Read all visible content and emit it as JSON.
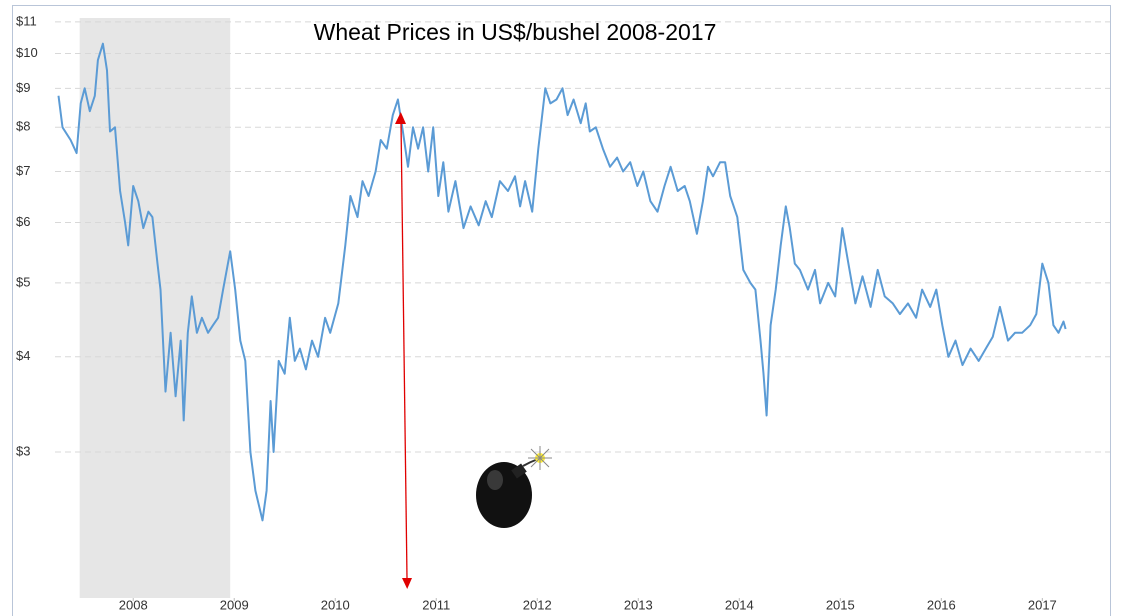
{
  "chart_data": {
    "type": "line",
    "title": "Wheat Prices in US$/bushel 2008-2017",
    "log_scale": true,
    "grid": true,
    "recession_band": [
      2007.97,
      2009.46
    ],
    "xlim": [
      2007.3,
      2018.17
    ],
    "ylim": [
      1.93,
      11.13
    ],
    "xticks": [
      {
        "value": 2008.5,
        "label": "2008"
      },
      {
        "value": 2009.5,
        "label": "2009"
      },
      {
        "value": 2010.5,
        "label": "2010"
      },
      {
        "value": 2011.5,
        "label": "2011"
      },
      {
        "value": 2012.5,
        "label": "2012"
      },
      {
        "value": 2013.5,
        "label": "2013"
      },
      {
        "value": 2014.5,
        "label": "2014"
      },
      {
        "value": 2015.5,
        "label": "2015"
      },
      {
        "value": 2016.5,
        "label": "2016"
      },
      {
        "value": 2017.5,
        "label": "2017"
      }
    ],
    "yticks": [
      {
        "value": 3,
        "label": "$3"
      },
      {
        "value": 4,
        "label": "$4"
      },
      {
        "value": 5,
        "label": "$5"
      },
      {
        "value": 6,
        "label": "$6"
      },
      {
        "value": 7,
        "label": "$7"
      },
      {
        "value": 8,
        "label": "$8"
      },
      {
        "value": 9,
        "label": "$9"
      },
      {
        "value": 10,
        "label": "$10"
      },
      {
        "value": 11,
        "label": "$11"
      }
    ],
    "x": [
      2007.76,
      2007.8,
      2007.88,
      2007.94,
      2007.98,
      2008.02,
      2008.07,
      2008.12,
      2008.15,
      2008.2,
      2008.24,
      2008.27,
      2008.32,
      2008.37,
      2008.42,
      2008.45,
      2008.5,
      2008.55,
      2008.6,
      2008.65,
      2008.69,
      2008.74,
      2008.77,
      2008.82,
      2008.87,
      2008.92,
      2008.97,
      2009.0,
      2009.04,
      2009.08,
      2009.13,
      2009.18,
      2009.24,
      2009.29,
      2009.34,
      2009.39,
      2009.46,
      2009.51,
      2009.56,
      2009.61,
      2009.66,
      2009.71,
      2009.78,
      2009.82,
      2009.86,
      2009.89,
      2009.94,
      2010.0,
      2010.05,
      2010.1,
      2010.15,
      2010.21,
      2010.27,
      2010.33,
      2010.4,
      2010.45,
      2010.53,
      2010.6,
      2010.65,
      2010.72,
      2010.77,
      2010.83,
      2010.9,
      2010.95,
      2011.01,
      2011.07,
      2011.12,
      2011.17,
      2011.22,
      2011.27,
      2011.32,
      2011.37,
      2011.42,
      2011.47,
      2011.52,
      2011.57,
      2011.62,
      2011.69,
      2011.77,
      2011.84,
      2011.92,
      2011.99,
      2012.05,
      2012.13,
      2012.21,
      2012.28,
      2012.33,
      2012.38,
      2012.45,
      2012.51,
      2012.58,
      2012.63,
      2012.69,
      2012.75,
      2012.8,
      2012.86,
      2012.93,
      2012.98,
      2013.02,
      2013.08,
      2013.15,
      2013.22,
      2013.29,
      2013.35,
      2013.42,
      2013.49,
      2013.55,
      2013.62,
      2013.69,
      2013.76,
      2013.82,
      2013.89,
      2013.96,
      2014.01,
      2014.08,
      2014.14,
      2014.19,
      2014.24,
      2014.31,
      2014.36,
      2014.41,
      2014.48,
      2014.54,
      2014.61,
      2014.66,
      2014.71,
      2014.74,
      2014.77,
      2014.81,
      2014.86,
      2014.91,
      2014.96,
      2015.0,
      2015.05,
      2015.1,
      2015.18,
      2015.25,
      2015.3,
      2015.38,
      2015.45,
      2015.52,
      2015.58,
      2015.65,
      2015.72,
      2015.8,
      2015.87,
      2015.94,
      2016.02,
      2016.09,
      2016.17,
      2016.25,
      2016.31,
      2016.39,
      2016.45,
      2016.51,
      2016.57,
      2016.64,
      2016.71,
      2016.79,
      2016.87,
      2016.94,
      2017.01,
      2017.08,
      2017.16,
      2017.23,
      2017.3,
      2017.38,
      2017.44,
      2017.5,
      2017.56,
      2017.61,
      2017.66,
      2017.71,
      2017.73
    ],
    "series": [
      {
        "color": "#5b9bd5",
        "values": [
          8.8,
          8.0,
          7.7,
          7.4,
          8.6,
          9.0,
          8.4,
          8.8,
          9.8,
          10.3,
          9.5,
          7.9,
          8.0,
          6.6,
          6.0,
          5.6,
          6.7,
          6.4,
          5.9,
          6.2,
          6.1,
          5.3,
          4.9,
          3.6,
          4.3,
          3.55,
          4.2,
          3.3,
          4.3,
          4.8,
          4.3,
          4.5,
          4.3,
          4.4,
          4.5,
          4.9,
          5.5,
          4.9,
          4.2,
          3.95,
          3.0,
          2.67,
          2.44,
          2.67,
          3.5,
          3.0,
          3.95,
          3.8,
          4.5,
          3.95,
          4.1,
          3.85,
          4.2,
          4.0,
          4.5,
          4.3,
          4.7,
          5.6,
          6.5,
          6.1,
          6.8,
          6.5,
          7.0,
          7.7,
          7.5,
          8.3,
          8.7,
          7.9,
          7.1,
          8.0,
          7.5,
          8.0,
          7.0,
          8.0,
          6.5,
          7.2,
          6.2,
          6.8,
          5.9,
          6.3,
          5.95,
          6.4,
          6.1,
          6.8,
          6.6,
          6.9,
          6.3,
          6.8,
          6.2,
          7.5,
          9.0,
          8.6,
          8.7,
          9.0,
          8.3,
          8.7,
          8.1,
          8.6,
          7.9,
          8.0,
          7.5,
          7.1,
          7.3,
          7.0,
          7.2,
          6.7,
          7.0,
          6.4,
          6.2,
          6.7,
          7.1,
          6.6,
          6.7,
          6.4,
          5.8,
          6.4,
          7.1,
          6.9,
          7.2,
          7.2,
          6.5,
          6.1,
          5.2,
          5.0,
          4.9,
          4.2,
          3.8,
          3.35,
          4.4,
          4.9,
          5.6,
          6.3,
          5.9,
          5.3,
          5.2,
          4.9,
          5.2,
          4.7,
          5.0,
          4.8,
          5.9,
          5.3,
          4.7,
          5.1,
          4.65,
          5.2,
          4.8,
          4.7,
          4.55,
          4.7,
          4.5,
          4.9,
          4.65,
          4.9,
          4.4,
          4.0,
          4.2,
          3.9,
          4.1,
          3.95,
          4.1,
          4.25,
          4.65,
          4.2,
          4.3,
          4.3,
          4.4,
          4.55,
          5.3,
          5.0,
          4.4,
          4.3,
          4.45,
          4.35
        ]
      }
    ]
  }
}
